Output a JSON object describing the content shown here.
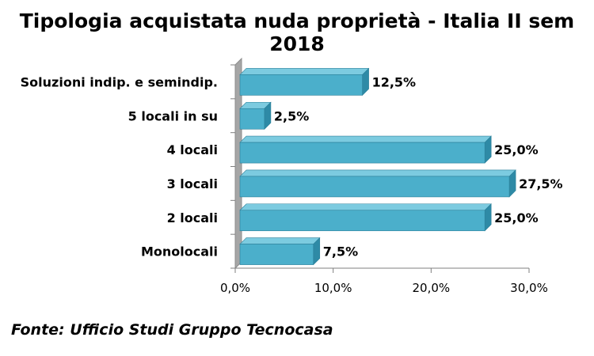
{
  "title": "Tipologia acquistata nuda proprietà - Italia II sem 2018",
  "source": "Fonte: Ufficio Studi Gruppo Tecnocasa",
  "colors": {
    "bar_front": "#4BAFCB",
    "bar_top": "#7CCBE0",
    "bar_side": "#2E8AA6",
    "wall": "#A6A6A6",
    "wall_dark": "#8C8C8C"
  },
  "chart_data": {
    "type": "bar",
    "orientation": "horizontal",
    "three_d": true,
    "categories": [
      "Soluzioni indip. e semindip.",
      "5 locali in su",
      "4 locali",
      "3 locali",
      "2 locali",
      "Monolocali"
    ],
    "values": [
      12.5,
      2.5,
      25.0,
      27.5,
      25.0,
      7.5
    ],
    "value_labels": [
      "12,5%",
      "2,5%",
      "25,0%",
      "27,5%",
      "25,0%",
      "7,5%"
    ],
    "xlim": [
      0,
      30
    ],
    "ticks": [
      0,
      10,
      20,
      30
    ],
    "tick_labels": [
      "0,0%",
      "10,0%",
      "20,0%",
      "30,0%"
    ],
    "grid": false,
    "legend": "none"
  }
}
